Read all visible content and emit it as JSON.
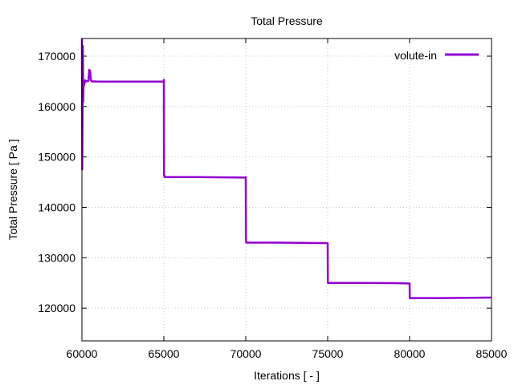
{
  "chart_data": {
    "type": "line",
    "title": "Total Pressure",
    "xlabel": "Iterations [ - ]",
    "ylabel": "Total Pressure [ Pa ]",
    "xlim": [
      60000,
      85000
    ],
    "ylim": [
      113500,
      173500
    ],
    "xticks": [
      60000,
      65000,
      70000,
      75000,
      80000,
      85000
    ],
    "yticks": [
      120000,
      130000,
      140000,
      150000,
      160000,
      170000
    ],
    "grid": true,
    "legend_position": "top-right",
    "series": [
      {
        "name": "volute-in",
        "color": "#9400d3",
        "points": [
          [
            60000,
            173500
          ],
          [
            60020,
            147500
          ],
          [
            60040,
            158000
          ],
          [
            60060,
            172000
          ],
          [
            60080,
            161000
          ],
          [
            60100,
            164000
          ],
          [
            60150,
            164500
          ],
          [
            60200,
            165200
          ],
          [
            60300,
            165000
          ],
          [
            60400,
            165100
          ],
          [
            60450,
            167300
          ],
          [
            60500,
            167000
          ],
          [
            60550,
            165200
          ],
          [
            60600,
            165000
          ],
          [
            61000,
            164950
          ],
          [
            63000,
            164950
          ],
          [
            65000,
            164950
          ],
          [
            65000,
            165300
          ],
          [
            65010,
            146500
          ],
          [
            65050,
            146000
          ],
          [
            67000,
            146000
          ],
          [
            70000,
            145900
          ],
          [
            70000,
            146000
          ],
          [
            70010,
            134000
          ],
          [
            70030,
            133000
          ],
          [
            72000,
            133000
          ],
          [
            75000,
            132900
          ],
          [
            75010,
            125000
          ],
          [
            77000,
            125000
          ],
          [
            79000,
            124950
          ],
          [
            80000,
            124900
          ],
          [
            80010,
            122000
          ],
          [
            82000,
            122000
          ],
          [
            85000,
            122100
          ]
        ]
      }
    ]
  }
}
